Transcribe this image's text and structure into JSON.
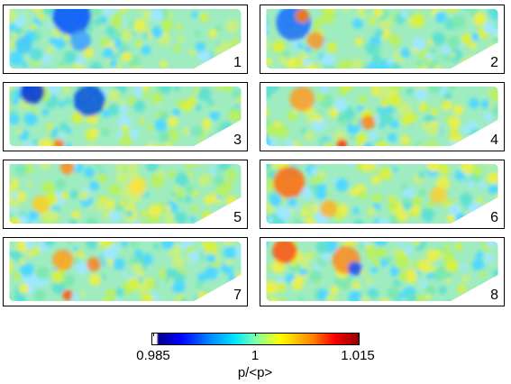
{
  "panels": [
    {
      "label": "1"
    },
    {
      "label": "2"
    },
    {
      "label": "3"
    },
    {
      "label": "4"
    },
    {
      "label": "5"
    },
    {
      "label": "6"
    },
    {
      "label": "7"
    },
    {
      "label": "8"
    }
  ],
  "colorbar": {
    "min_label": "0.985",
    "mid_label": "1",
    "max_label": "1.015",
    "label": "p/<p>",
    "colormap": [
      "#00008f",
      "#0000ff",
      "#0080ff",
      "#00e5ff",
      "#7fffaa",
      "#ffff00",
      "#ff8000",
      "#ff0000",
      "#8f0000"
    ]
  }
}
